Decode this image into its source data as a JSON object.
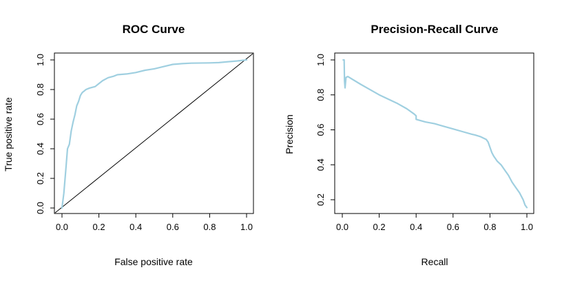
{
  "chart_data": [
    {
      "type": "line",
      "title": "ROC Curve",
      "xlabel": "False positive rate",
      "ylabel": "True positive rate",
      "xlim": [
        0,
        1
      ],
      "ylim": [
        0,
        1
      ],
      "xticks": [
        "0.0",
        "0.2",
        "0.4",
        "0.6",
        "0.8",
        "1.0"
      ],
      "yticks": [
        "0.0",
        "0.2",
        "0.4",
        "0.6",
        "0.8",
        "1.0"
      ],
      "line_color": "#9fcfe0",
      "reference_line": {
        "x": [
          0,
          1
        ],
        "y": [
          0,
          1
        ],
        "color": "#000000"
      },
      "series": [
        {
          "x": [
            0,
            0.01,
            0.02,
            0.03,
            0.04,
            0.05,
            0.06,
            0.07,
            0.08,
            0.09,
            0.1,
            0.11,
            0.12,
            0.13,
            0.15,
            0.18,
            0.2,
            0.22,
            0.25,
            0.28,
            0.3,
            0.35,
            0.4,
            0.45,
            0.5,
            0.55,
            0.6,
            0.65,
            0.7,
            0.8,
            0.85,
            0.9,
            0.95,
            1.0
          ],
          "y": [
            0,
            0.1,
            0.25,
            0.4,
            0.43,
            0.52,
            0.58,
            0.63,
            0.69,
            0.72,
            0.76,
            0.78,
            0.79,
            0.8,
            0.81,
            0.82,
            0.84,
            0.86,
            0.88,
            0.89,
            0.9,
            0.905,
            0.915,
            0.93,
            0.94,
            0.955,
            0.97,
            0.975,
            0.978,
            0.98,
            0.982,
            0.988,
            0.993,
            1.0
          ]
        }
      ]
    },
    {
      "type": "line",
      "title": "Precision-Recall Curve",
      "xlabel": "Recall",
      "ylabel": "Precision",
      "xlim": [
        0,
        1
      ],
      "ylim": [
        0.15,
        1.0
      ],
      "xticks": [
        "0.0",
        "0.2",
        "0.4",
        "0.6",
        "0.8",
        "1.0"
      ],
      "yticks": [
        "0.2",
        "0.4",
        "0.6",
        "0.8",
        "1.0"
      ],
      "line_color": "#9fcfe0",
      "series": [
        {
          "x": [
            0.005,
            0.01,
            0.012,
            0.015,
            0.02,
            0.03,
            0.1,
            0.2,
            0.3,
            0.35,
            0.39,
            0.4,
            0.4,
            0.45,
            0.5,
            0.55,
            0.6,
            0.65,
            0.7,
            0.72,
            0.75,
            0.78,
            0.79,
            0.8,
            0.81,
            0.82,
            0.84,
            0.86,
            0.88,
            0.9,
            0.92,
            0.94,
            0.96,
            0.98,
            0.99,
            1.0
          ],
          "y": [
            1.0,
            1.0,
            0.88,
            0.84,
            0.9,
            0.905,
            0.86,
            0.8,
            0.75,
            0.72,
            0.69,
            0.68,
            0.66,
            0.645,
            0.635,
            0.62,
            0.605,
            0.59,
            0.575,
            0.57,
            0.56,
            0.545,
            0.53,
            0.5,
            0.47,
            0.45,
            0.42,
            0.4,
            0.37,
            0.34,
            0.3,
            0.27,
            0.24,
            0.2,
            0.17,
            0.155
          ]
        }
      ]
    }
  ]
}
